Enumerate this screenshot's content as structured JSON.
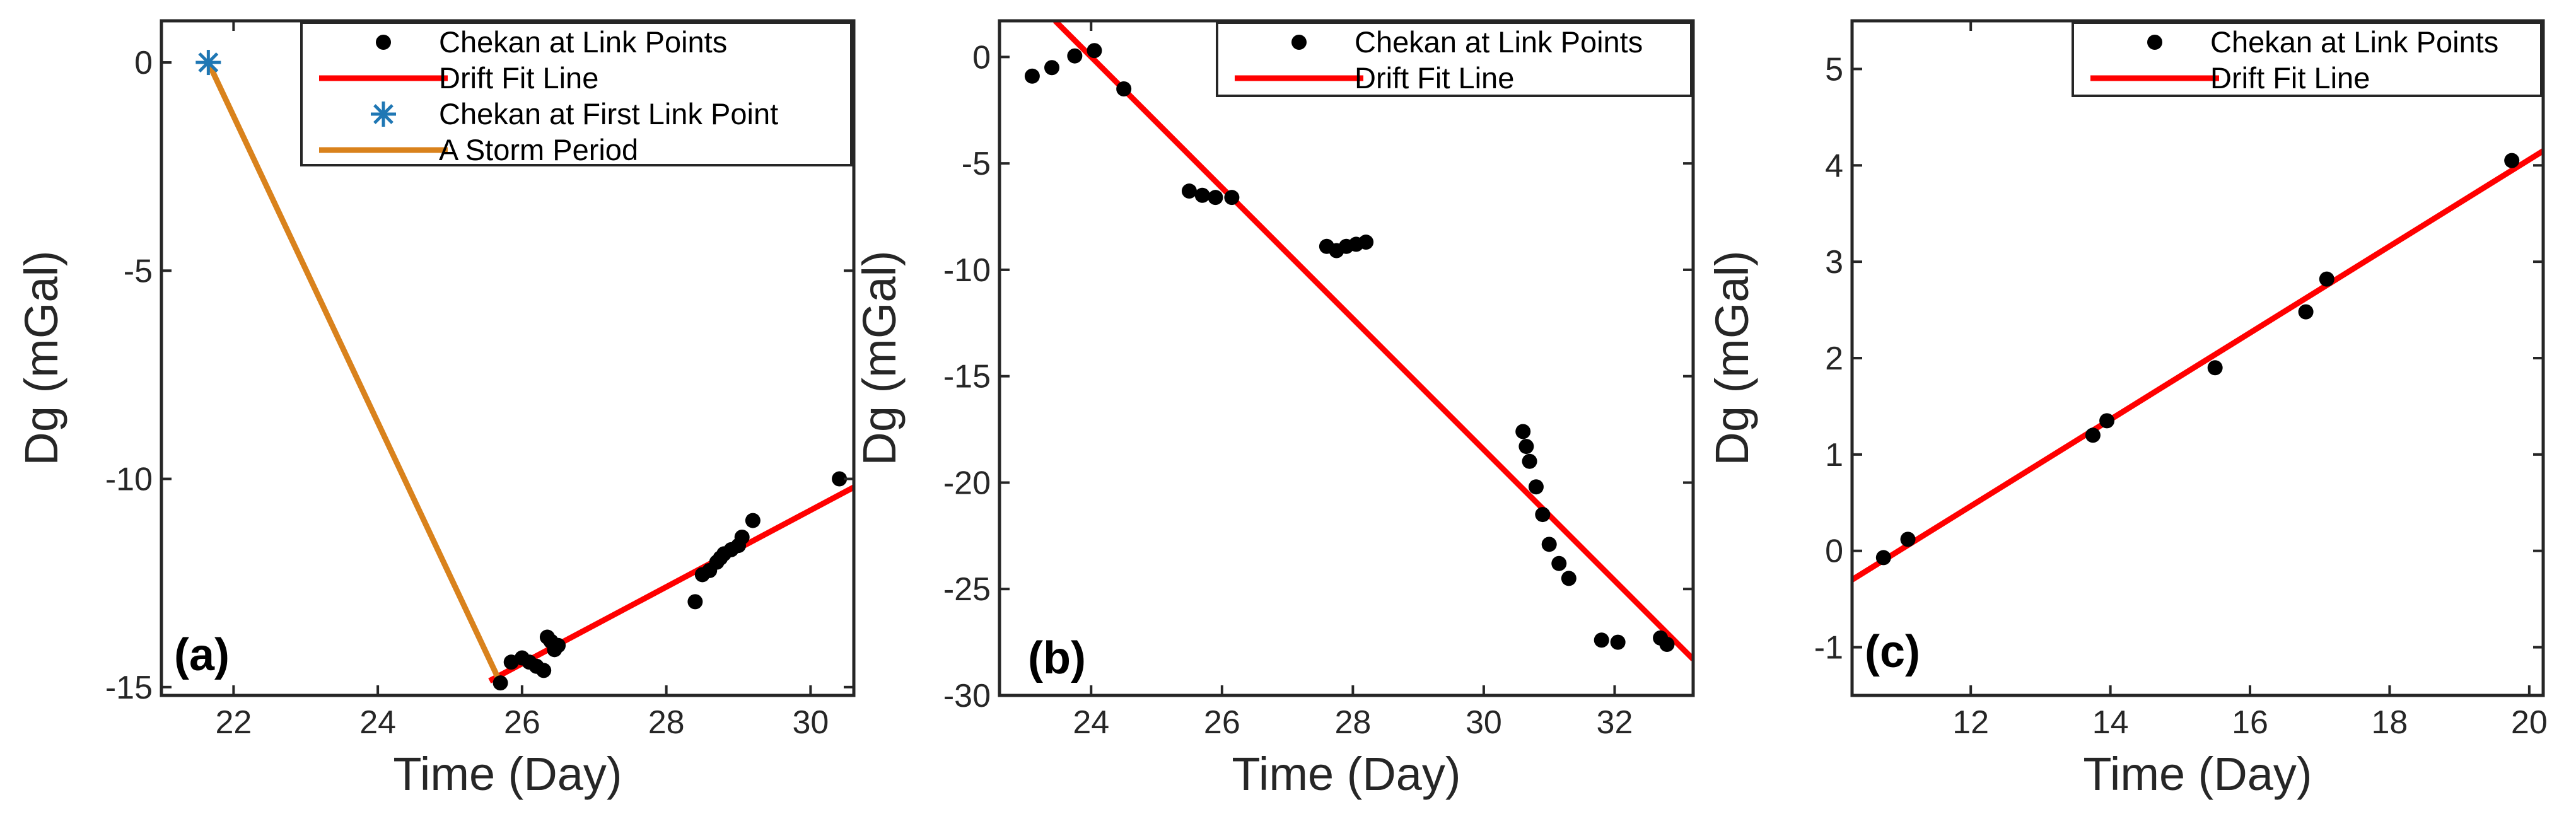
{
  "colors": {
    "axis": "#262626",
    "points": "#000000",
    "fit": "#ff0000",
    "storm": "#d9821c",
    "first_point": "#1f77b4"
  },
  "chart_data": [
    {
      "panel_label": "(a)",
      "type": "scatter",
      "xlabel": "Time (Day)",
      "ylabel": "Dg (mGal)",
      "xlim": [
        21.0,
        30.6
      ],
      "ylim": [
        -15.2,
        1.0
      ],
      "xticks": [
        22,
        24,
        26,
        28,
        30
      ],
      "yticks": [
        0,
        -5,
        -10,
        -15
      ],
      "legend": [
        "Chekan at Link Points",
        "Drift Fit Line",
        "Chekan at First Link Point",
        "A Storm Period"
      ],
      "legend_position": "top-right",
      "series": [
        {
          "name": "Chekan at Link Points",
          "kind": "points",
          "x": [
            25.7,
            25.85,
            26.0,
            26.1,
            26.2,
            26.3,
            26.35,
            26.4,
            26.45,
            26.5,
            28.4,
            28.5,
            28.6,
            28.7,
            28.75,
            28.8,
            28.9,
            29.0,
            29.05,
            29.2,
            30.4
          ],
          "y": [
            -14.9,
            -14.4,
            -14.3,
            -14.4,
            -14.5,
            -14.6,
            -13.8,
            -13.9,
            -14.1,
            -14.0,
            -12.95,
            -12.3,
            -12.2,
            -12.0,
            -11.9,
            -11.8,
            -11.7,
            -11.6,
            -11.4,
            -11.0,
            -10.0
          ]
        },
        {
          "name": "Drift Fit Line",
          "kind": "line",
          "x": [
            25.55,
            30.6
          ],
          "y": [
            -14.85,
            -10.2
          ]
        },
        {
          "name": "Chekan at First Link Point",
          "kind": "star",
          "x": [
            21.65
          ],
          "y": [
            0.0
          ]
        },
        {
          "name": "A Storm Period",
          "kind": "line",
          "x": [
            21.65,
            25.7
          ],
          "y": [
            0.0,
            -14.9
          ]
        }
      ]
    },
    {
      "panel_label": "(b)",
      "type": "scatter",
      "xlabel": "Time (Day)",
      "ylabel": "Dg (mGal)",
      "xlim": [
        22.6,
        33.2
      ],
      "ylim": [
        -30,
        1.7
      ],
      "xticks": [
        24,
        26,
        28,
        30,
        32
      ],
      "yticks": [
        0,
        -5,
        -10,
        -15,
        -20,
        -25,
        -30
      ],
      "legend": [
        "Chekan at Link Points",
        "Drift Fit Line"
      ],
      "legend_position": "top-right",
      "series": [
        {
          "name": "Chekan at Link Points",
          "kind": "points",
          "x": [
            23.1,
            23.4,
            23.75,
            24.05,
            24.5,
            25.5,
            25.7,
            25.9,
            26.15,
            27.6,
            27.75,
            27.9,
            28.05,
            28.2,
            30.6,
            30.65,
            30.7,
            30.8,
            30.9,
            31.0,
            31.15,
            31.3,
            31.8,
            32.05,
            32.7,
            32.8
          ],
          "y": [
            -0.9,
            -0.5,
            0.05,
            0.3,
            -1.5,
            -6.3,
            -6.5,
            -6.6,
            -6.6,
            -8.9,
            -9.1,
            -8.9,
            -8.8,
            -8.7,
            -17.6,
            -18.3,
            -19.0,
            -20.2,
            -21.5,
            -22.9,
            -23.8,
            -24.5,
            -27.4,
            -27.5,
            -27.3,
            -27.6
          ]
        },
        {
          "name": "Drift Fit Line",
          "kind": "line",
          "x": [
            23.45,
            33.2
          ],
          "y": [
            1.7,
            -28.3
          ]
        }
      ]
    },
    {
      "panel_label": "(c)",
      "type": "scatter",
      "xlabel": "Time (Day)",
      "ylabel": "Dg (mGal)",
      "xlim": [
        10.3,
        20.2
      ],
      "ylim": [
        -1.5,
        5.5
      ],
      "xticks": [
        12,
        14,
        16,
        18,
        20
      ],
      "yticks": [
        5,
        4,
        3,
        2,
        1,
        0,
        -1
      ],
      "legend": [
        "Chekan at Link Points",
        "Drift Fit Line"
      ],
      "legend_position": "top-right",
      "series": [
        {
          "name": "Chekan at Link Points",
          "kind": "points",
          "x": [
            10.75,
            11.1,
            13.75,
            13.95,
            15.5,
            16.8,
            17.1,
            19.75
          ],
          "y": [
            -0.07,
            0.12,
            1.2,
            1.35,
            1.9,
            2.48,
            2.82,
            4.05
          ]
        },
        {
          "name": "Drift Fit Line",
          "kind": "line",
          "x": [
            10.3,
            20.2
          ],
          "y": [
            -0.3,
            4.15
          ]
        }
      ]
    }
  ]
}
